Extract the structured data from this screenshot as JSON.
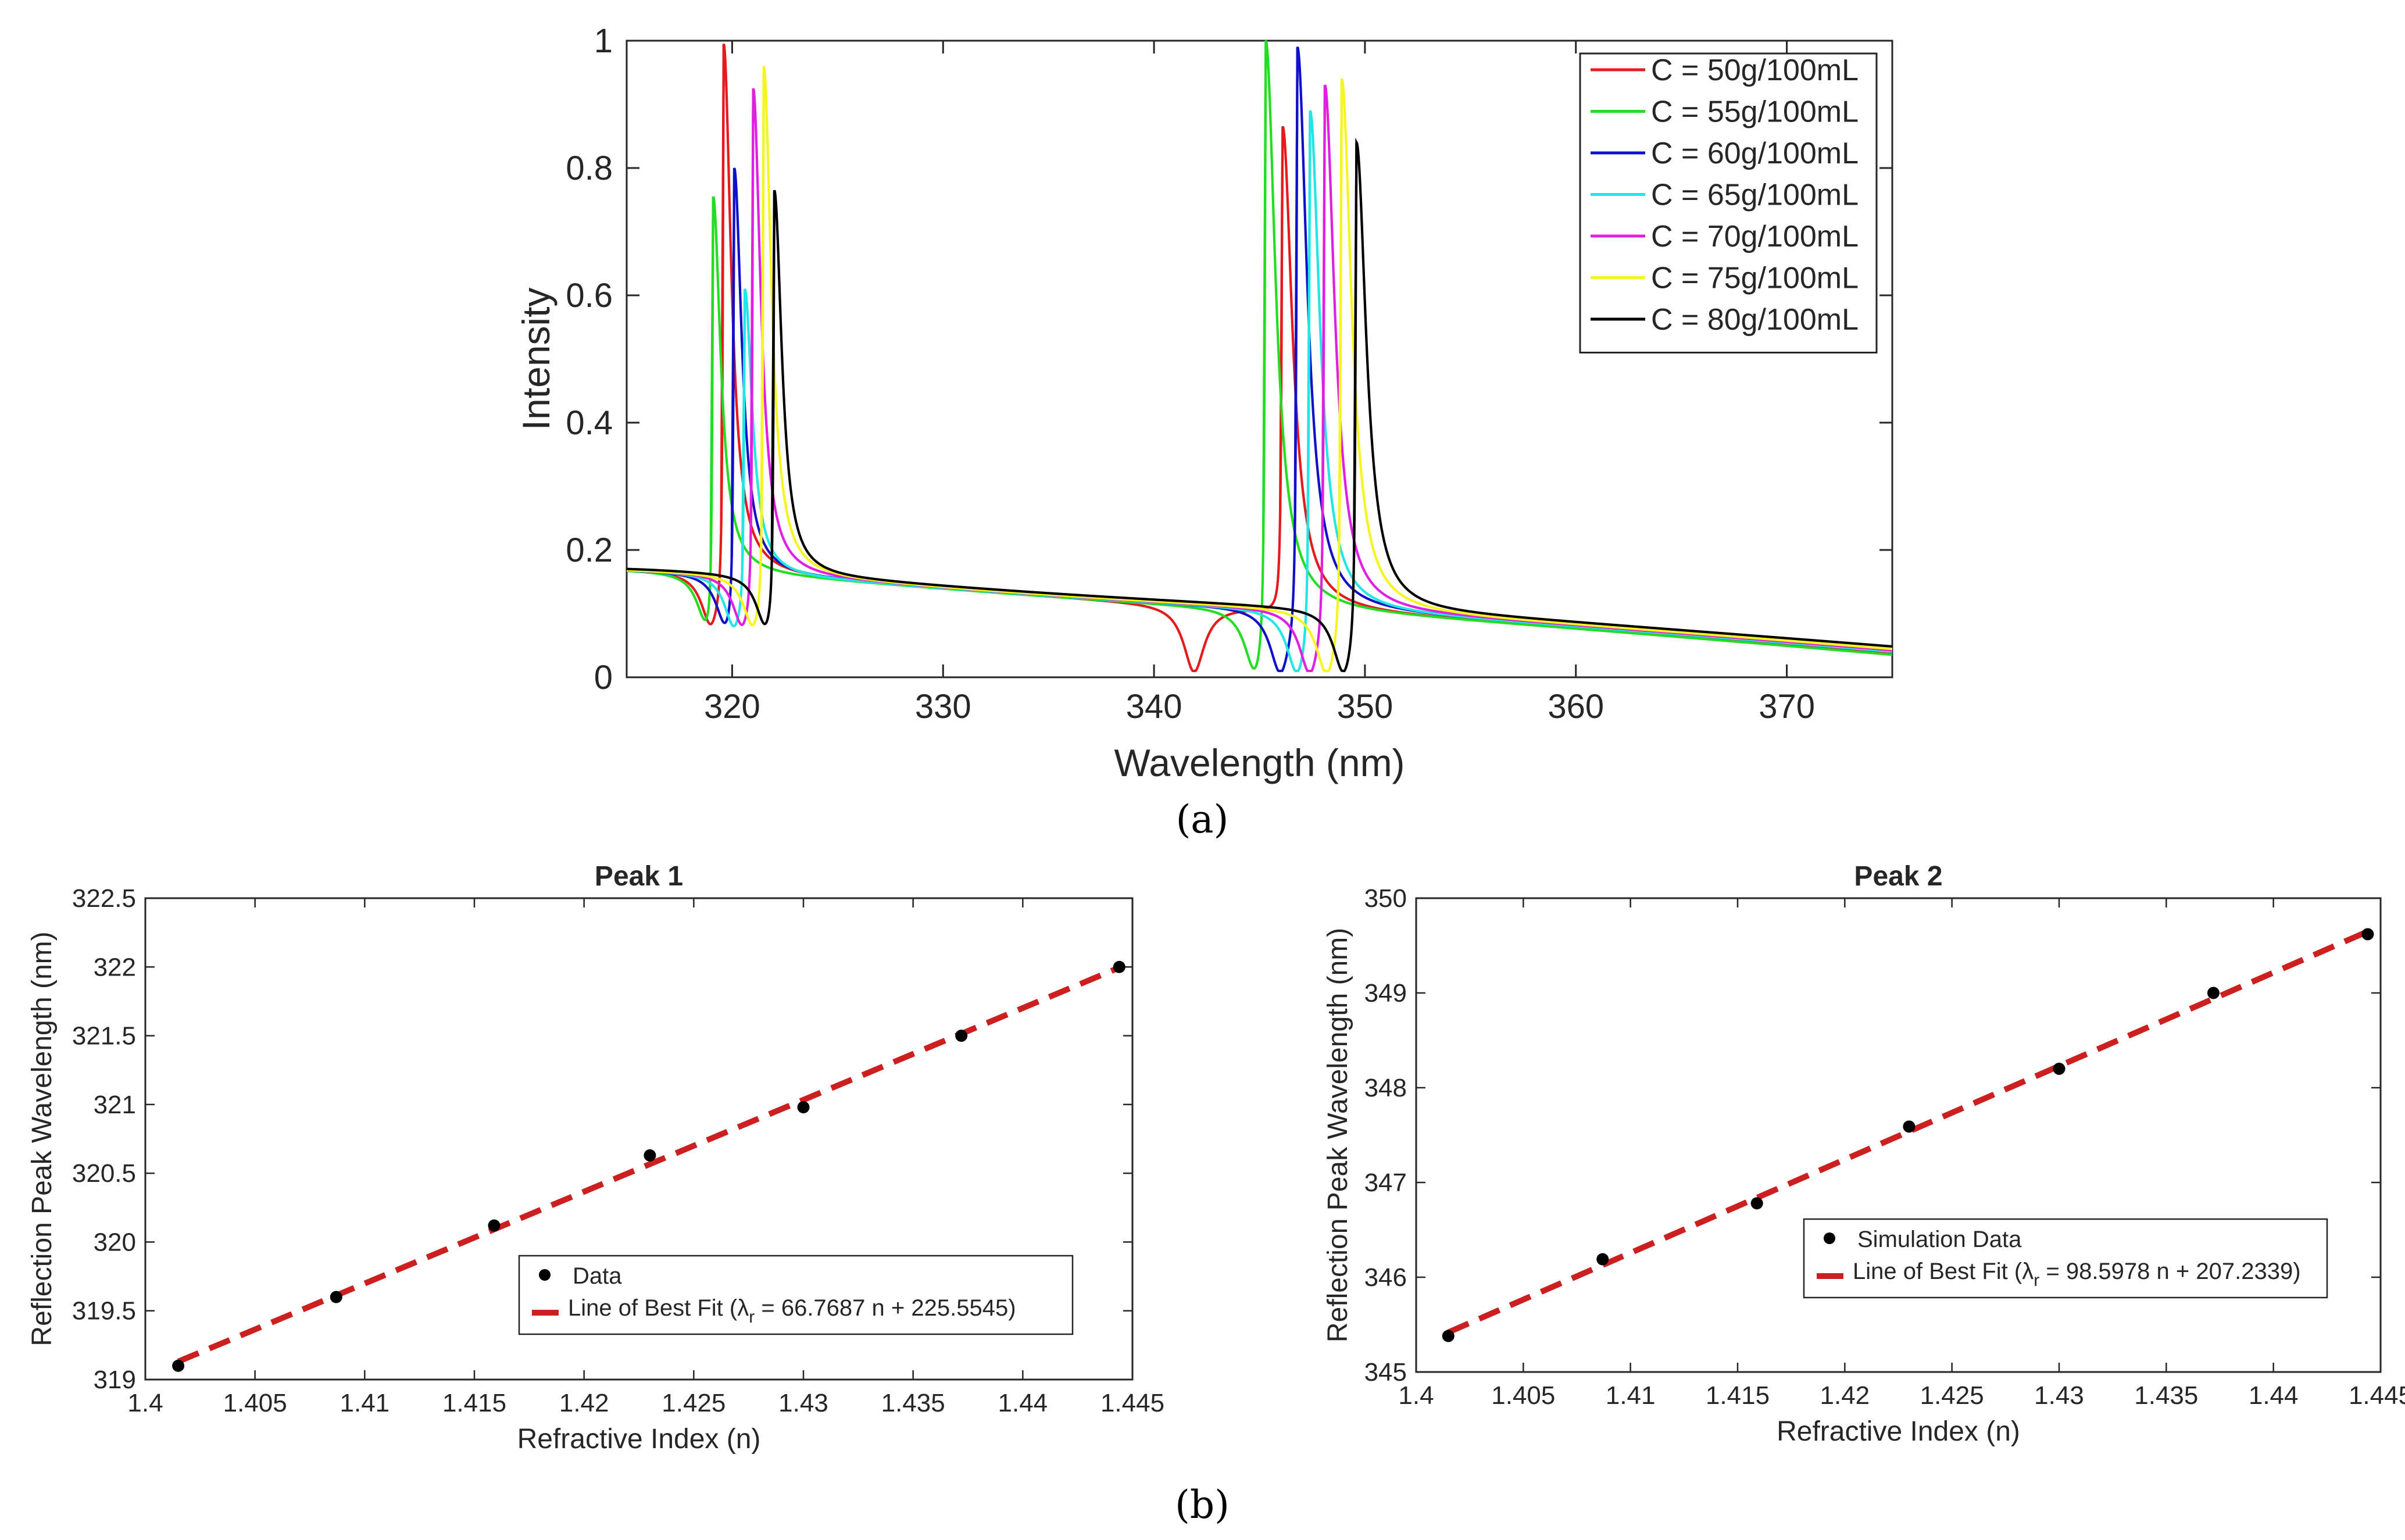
{
  "captions": {
    "a": "(a)",
    "b": "(b)"
  },
  "chart_data": [
    {
      "type": "line",
      "title": "",
      "xlabel": "Wavelength (nm)",
      "ylabel": "Intensity",
      "xlim": [
        315,
        375
      ],
      "ylim": [
        0,
        1
      ],
      "xticks": [
        "320",
        "330",
        "340",
        "350",
        "360",
        "370"
      ],
      "yticks": [
        "0",
        "0.2",
        "0.4",
        "0.6",
        "0.8",
        "1"
      ],
      "legend_position": "top-right",
      "series": [
        {
          "name": "C = 50g/100mL",
          "color": "#e41a1c",
          "peak1_x": 319.6,
          "peak1_y": 0.995,
          "peak2_x": 346.1,
          "peak2_y": 0.865,
          "dip1_x": 319.0,
          "dip2_x": 341.9,
          "base_at_315": 0.17,
          "base_at_375": 0.036
        },
        {
          "name": "C = 55g/100mL",
          "color": "#22dd22",
          "peak1_x": 319.1,
          "peak1_y": 0.755,
          "peak2_x": 345.3,
          "peak2_y": 1.0,
          "dip1_x": 318.8,
          "dip2_x": 344.8,
          "base_at_315": 0.17,
          "base_at_375": 0.035
        },
        {
          "name": "C = 60g/100mL",
          "color": "#1010c8",
          "peak1_x": 320.1,
          "peak1_y": 0.8,
          "peak2_x": 346.8,
          "peak2_y": 0.99,
          "dip1_x": 319.7,
          "dip2_x": 346.0,
          "base_at_315": 0.17,
          "base_at_375": 0.04
        },
        {
          "name": "C = 65g/100mL",
          "color": "#22e5e5",
          "peak1_x": 320.6,
          "peak1_y": 0.61,
          "peak2_x": 347.4,
          "peak2_y": 0.89,
          "dip1_x": 320.1,
          "dip2_x": 346.8,
          "base_at_315": 0.17,
          "base_at_375": 0.04
        },
        {
          "name": "C = 70g/100mL",
          "color": "#e020e0",
          "peak1_x": 321.0,
          "peak1_y": 0.925,
          "peak2_x": 348.1,
          "peak2_y": 0.93,
          "dip1_x": 320.5,
          "dip2_x": 347.4,
          "base_at_315": 0.17,
          "base_at_375": 0.042
        },
        {
          "name": "C = 75g/100mL",
          "color": "#f5f520",
          "peak1_x": 321.5,
          "peak1_y": 0.96,
          "peak2_x": 348.9,
          "peak2_y": 0.94,
          "dip1_x": 321.0,
          "dip2_x": 348.2,
          "base_at_315": 0.17,
          "base_at_375": 0.044
        },
        {
          "name": "C = 80g/100mL",
          "color": "#000000",
          "peak1_x": 322.0,
          "peak1_y": 0.765,
          "peak2_x": 349.6,
          "peak2_y": 0.84,
          "dip1_x": 321.6,
          "dip2_x": 349.0,
          "base_at_315": 0.172,
          "base_at_375": 0.048
        }
      ]
    },
    {
      "type": "scatter",
      "title": "Peak 1",
      "xlabel": "Refractive Index (n)",
      "ylabel": "Reflection Peak Wavelength (nm)",
      "xlim": [
        1.4,
        1.445
      ],
      "ylim": [
        319,
        322.5
      ],
      "xticks": [
        "1.4",
        "1.405",
        "1.41",
        "1.415",
        "1.42",
        "1.425",
        "1.43",
        "1.435",
        "1.44",
        "1.445"
      ],
      "yticks": [
        "319",
        "319.5",
        "320",
        "320.5",
        "321",
        "321.5",
        "322",
        "322.5"
      ],
      "legend_position": "lower-right",
      "points": [
        [
          1.4015,
          319.1
        ],
        [
          1.4087,
          319.6
        ],
        [
          1.4159,
          320.12
        ],
        [
          1.423,
          320.63
        ],
        [
          1.43,
          320.98
        ],
        [
          1.4372,
          321.5
        ],
        [
          1.4444,
          322.0
        ]
      ],
      "fit": {
        "slope": 66.7687,
        "intercept": 225.5545
      },
      "legend": {
        "data_label": "Data",
        "fit_label_prefix": "Line of Best Fit (",
        "fit_label_symbol": "λ",
        "fit_label_subscript": "r",
        "fit_label_suffix": " =    66.7687 n + 225.5545)"
      }
    },
    {
      "type": "scatter",
      "title": "Peak 2",
      "xlabel": "Refractive Index (n)",
      "ylabel": "Reflection Peak Wavelength (nm)",
      "xlim": [
        1.4,
        1.445
      ],
      "ylim": [
        345,
        350
      ],
      "xticks": [
        "1.4",
        "1.405",
        "1.41",
        "1.415",
        "1.42",
        "1.425",
        "1.43",
        "1.435",
        "1.44",
        "1.445"
      ],
      "yticks": [
        "345",
        "346",
        "347",
        "348",
        "349",
        "350"
      ],
      "legend_position": "lower-right",
      "points": [
        [
          1.4015,
          345.38
        ],
        [
          1.4087,
          346.19
        ],
        [
          1.4159,
          346.78
        ],
        [
          1.423,
          347.59
        ],
        [
          1.43,
          348.2
        ],
        [
          1.4372,
          349.0
        ],
        [
          1.4444,
          349.62
        ]
      ],
      "fit": {
        "slope": 98.5978,
        "intercept": 207.2339
      },
      "legend": {
        "data_label": "Simulation Data",
        "fit_label_prefix": "Line of Best Fit (",
        "fit_label_symbol": "λ",
        "fit_label_subscript": "r",
        "fit_label_suffix": " = 98.5978 n + 207.2339)"
      }
    }
  ]
}
